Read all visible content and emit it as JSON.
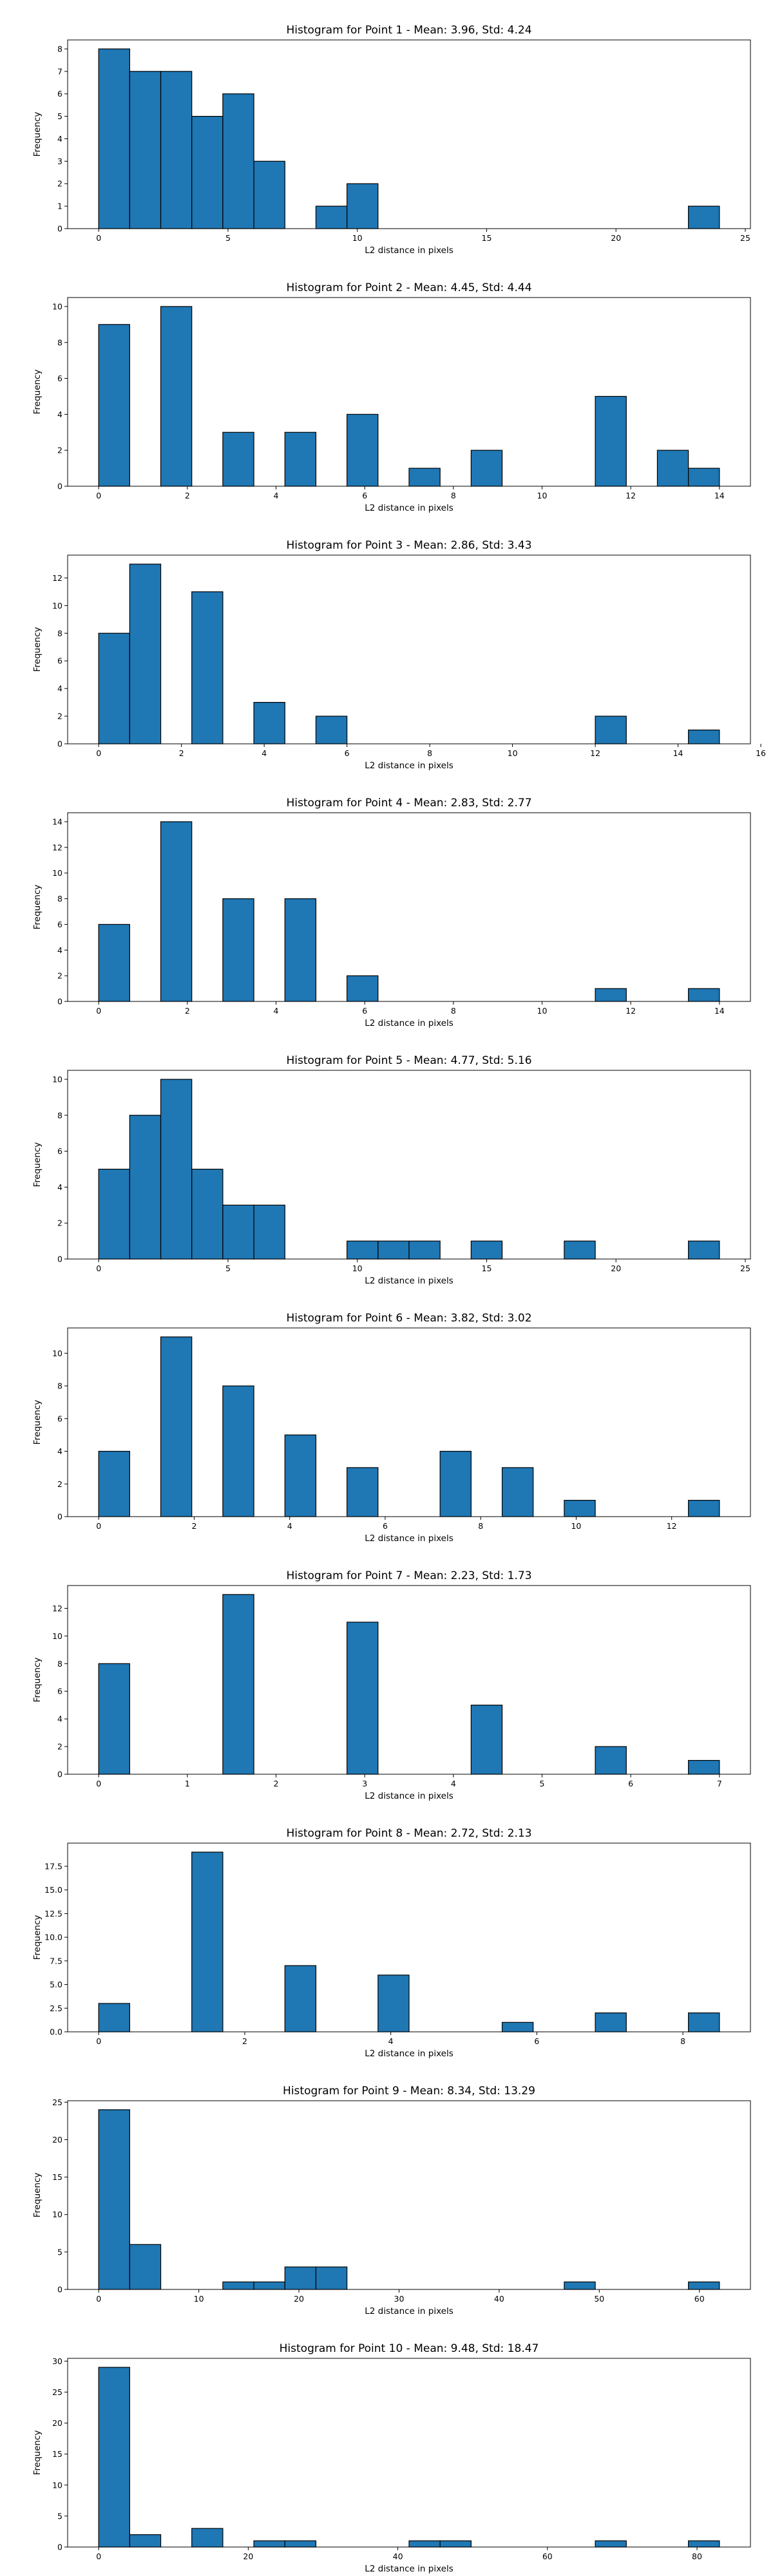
{
  "style": {
    "bar_color": "#1f77b4",
    "edge_color": "#000000"
  },
  "chart_data": [
    {
      "type": "bar",
      "title": "Histogram for Point 1 - Mean: 3.96, Std: 4.24",
      "xlabel": "L2 distance in pixels",
      "ylabel": "Frequency",
      "xlim": [
        -1.2,
        25.2
      ],
      "ylim": [
        0,
        8.4
      ],
      "xticks": [
        0,
        5,
        10,
        15,
        20,
        25
      ],
      "yticks": [
        0,
        1,
        2,
        3,
        4,
        5,
        6,
        7,
        8
      ],
      "bins": [
        {
          "x0": 0.0,
          "x1": 1.2,
          "count": 8
        },
        {
          "x0": 1.2,
          "x1": 2.4,
          "count": 7
        },
        {
          "x0": 2.4,
          "x1": 3.6,
          "count": 7
        },
        {
          "x0": 3.6,
          "x1": 4.8,
          "count": 5
        },
        {
          "x0": 4.8,
          "x1": 6.0,
          "count": 6
        },
        {
          "x0": 6.0,
          "x1": 7.2,
          "count": 3
        },
        {
          "x0": 8.4,
          "x1": 9.6,
          "count": 1
        },
        {
          "x0": 9.6,
          "x1": 10.8,
          "count": 2
        },
        {
          "x0": 22.8,
          "x1": 24.0,
          "count": 1
        }
      ]
    },
    {
      "type": "bar",
      "title": "Histogram for Point 2 - Mean: 4.45, Std: 4.44",
      "xlabel": "L2 distance in pixels",
      "ylabel": "Frequency",
      "xlim": [
        -0.7,
        14.7
      ],
      "ylim": [
        0,
        10.5
      ],
      "xticks": [
        0,
        2,
        4,
        6,
        8,
        10,
        12,
        14
      ],
      "yticks": [
        0,
        2,
        4,
        6,
        8,
        10
      ],
      "bins": [
        {
          "x0": 0.0,
          "x1": 0.7,
          "count": 9
        },
        {
          "x0": 1.4,
          "x1": 2.1,
          "count": 10
        },
        {
          "x0": 2.8,
          "x1": 3.5,
          "count": 3
        },
        {
          "x0": 4.2,
          "x1": 4.9,
          "count": 3
        },
        {
          "x0": 5.6,
          "x1": 6.3,
          "count": 4
        },
        {
          "x0": 7.0,
          "x1": 7.7,
          "count": 1
        },
        {
          "x0": 8.4,
          "x1": 9.1,
          "count": 2
        },
        {
          "x0": 11.2,
          "x1": 11.9,
          "count": 5
        },
        {
          "x0": 12.6,
          "x1": 13.3,
          "count": 2
        },
        {
          "x0": 13.3,
          "x1": 14.0,
          "count": 1
        }
      ]
    },
    {
      "type": "bar",
      "title": "Histogram for Point 3 - Mean: 2.86, Std: 3.43",
      "xlabel": "L2 distance in pixels",
      "ylabel": "Frequency",
      "xlim": [
        -0.75,
        15.75
      ],
      "ylim": [
        0,
        13.65
      ],
      "xticks": [
        0,
        2,
        4,
        6,
        8,
        10,
        12,
        14,
        16
      ],
      "yticks": [
        0,
        2,
        4,
        6,
        8,
        10,
        12
      ],
      "bins": [
        {
          "x0": 0.0,
          "x1": 0.75,
          "count": 8
        },
        {
          "x0": 0.75,
          "x1": 1.5,
          "count": 13
        },
        {
          "x0": 2.25,
          "x1": 3.0,
          "count": 11
        },
        {
          "x0": 3.75,
          "x1": 4.5,
          "count": 3
        },
        {
          "x0": 5.25,
          "x1": 6.0,
          "count": 2
        },
        {
          "x0": 12.0,
          "x1": 12.75,
          "count": 2
        },
        {
          "x0": 14.25,
          "x1": 15.0,
          "count": 1
        }
      ]
    },
    {
      "type": "bar",
      "title": "Histogram for Point 4 - Mean: 2.83, Std: 2.77",
      "xlabel": "L2 distance in pixels",
      "ylabel": "Frequency",
      "xlim": [
        -0.7,
        14.7
      ],
      "ylim": [
        0,
        14.7
      ],
      "xticks": [
        0,
        2,
        4,
        6,
        8,
        10,
        12,
        14
      ],
      "yticks": [
        0,
        2,
        4,
        6,
        8,
        10,
        12,
        14
      ],
      "bins": [
        {
          "x0": 0.0,
          "x1": 0.7,
          "count": 6
        },
        {
          "x0": 1.4,
          "x1": 2.1,
          "count": 14
        },
        {
          "x0": 2.8,
          "x1": 3.5,
          "count": 8
        },
        {
          "x0": 4.2,
          "x1": 4.9,
          "count": 8
        },
        {
          "x0": 5.6,
          "x1": 6.3,
          "count": 2
        },
        {
          "x0": 11.2,
          "x1": 11.9,
          "count": 1
        },
        {
          "x0": 13.3,
          "x1": 14.0,
          "count": 1
        }
      ]
    },
    {
      "type": "bar",
      "title": "Histogram for Point 5 - Mean: 4.77, Std: 5.16",
      "xlabel": "L2 distance in pixels",
      "ylabel": "Frequency",
      "xlim": [
        -1.2,
        25.2
      ],
      "ylim": [
        0,
        10.5
      ],
      "xticks": [
        0,
        5,
        10,
        15,
        20,
        25
      ],
      "yticks": [
        0,
        2,
        4,
        6,
        8,
        10
      ],
      "bins": [
        {
          "x0": 0.0,
          "x1": 1.2,
          "count": 5
        },
        {
          "x0": 1.2,
          "x1": 2.4,
          "count": 8
        },
        {
          "x0": 2.4,
          "x1": 3.6,
          "count": 10
        },
        {
          "x0": 3.6,
          "x1": 4.8,
          "count": 5
        },
        {
          "x0": 4.8,
          "x1": 6.0,
          "count": 3
        },
        {
          "x0": 6.0,
          "x1": 7.2,
          "count": 3
        },
        {
          "x0": 9.6,
          "x1": 10.8,
          "count": 1
        },
        {
          "x0": 10.8,
          "x1": 12.0,
          "count": 1
        },
        {
          "x0": 12.0,
          "x1": 13.2,
          "count": 1
        },
        {
          "x0": 14.4,
          "x1": 15.6,
          "count": 1
        },
        {
          "x0": 18.0,
          "x1": 19.2,
          "count": 1
        },
        {
          "x0": 22.8,
          "x1": 24.0,
          "count": 1
        }
      ]
    },
    {
      "type": "bar",
      "title": "Histogram for Point 6 - Mean: 3.82, Std: 3.02",
      "xlabel": "L2 distance in pixels",
      "ylabel": "Frequency",
      "xlim": [
        -0.65,
        13.65
      ],
      "ylim": [
        0,
        11.55
      ],
      "xticks": [
        0,
        2,
        4,
        6,
        8,
        10,
        12
      ],
      "yticks": [
        0,
        2,
        4,
        6,
        8,
        10
      ],
      "bins": [
        {
          "x0": 0.0,
          "x1": 0.65,
          "count": 4
        },
        {
          "x0": 1.3,
          "x1": 1.95,
          "count": 11
        },
        {
          "x0": 2.6,
          "x1": 3.25,
          "count": 8
        },
        {
          "x0": 3.9,
          "x1": 4.55,
          "count": 5
        },
        {
          "x0": 5.2,
          "x1": 5.85,
          "count": 3
        },
        {
          "x0": 7.15,
          "x1": 7.8,
          "count": 4
        },
        {
          "x0": 8.45,
          "x1": 9.1,
          "count": 3
        },
        {
          "x0": 9.75,
          "x1": 10.4,
          "count": 1
        },
        {
          "x0": 12.35,
          "x1": 13.0,
          "count": 1
        }
      ]
    },
    {
      "type": "bar",
      "title": "Histogram for Point 7 - Mean: 2.23, Std: 1.73",
      "xlabel": "L2 distance in pixels",
      "ylabel": "Frequency",
      "xlim": [
        -0.35,
        7.35
      ],
      "ylim": [
        0,
        13.65
      ],
      "xticks": [
        0,
        1,
        2,
        3,
        4,
        5,
        6,
        7
      ],
      "yticks": [
        0,
        2,
        4,
        6,
        8,
        10,
        12
      ],
      "bins": [
        {
          "x0": 0.0,
          "x1": 0.35,
          "count": 8
        },
        {
          "x0": 1.4,
          "x1": 1.75,
          "count": 13
        },
        {
          "x0": 2.8,
          "x1": 3.15,
          "count": 11
        },
        {
          "x0": 4.2,
          "x1": 4.55,
          "count": 5
        },
        {
          "x0": 5.6,
          "x1": 5.95,
          "count": 2
        },
        {
          "x0": 6.65,
          "x1": 7.0,
          "count": 1
        }
      ]
    },
    {
      "type": "bar",
      "title": "Histogram for Point 8 - Mean: 2.72, Std: 2.13",
      "xlabel": "L2 distance in pixels",
      "ylabel": "Frequency",
      "xlim": [
        -0.425,
        8.925
      ],
      "ylim": [
        0,
        19.95
      ],
      "xticks": [
        0,
        2,
        4,
        6,
        8
      ],
      "yticks": [
        0,
        2.5,
        5.0,
        7.5,
        10.0,
        12.5,
        15.0,
        17.5
      ],
      "ytick_labels": [
        "0.0",
        "2.5",
        "5.0",
        "7.5",
        "10.0",
        "12.5",
        "15.0",
        "17.5"
      ],
      "bins": [
        {
          "x0": 0.0,
          "x1": 0.425,
          "count": 3
        },
        {
          "x0": 1.275,
          "x1": 1.7,
          "count": 19
        },
        {
          "x0": 2.55,
          "x1": 2.975,
          "count": 7
        },
        {
          "x0": 3.825,
          "x1": 4.25,
          "count": 6
        },
        {
          "x0": 5.525,
          "x1": 5.95,
          "count": 1
        },
        {
          "x0": 6.8,
          "x1": 7.225,
          "count": 2
        },
        {
          "x0": 8.075,
          "x1": 8.5,
          "count": 2
        }
      ]
    },
    {
      "type": "bar",
      "title": "Histogram for Point 9 - Mean: 8.34, Std: 13.29",
      "xlabel": "L2 distance in pixels",
      "ylabel": "Frequency",
      "xlim": [
        -3.1,
        65.1
      ],
      "ylim": [
        0,
        25.2
      ],
      "xticks": [
        0,
        10,
        20,
        30,
        40,
        50,
        60
      ],
      "yticks": [
        0,
        5,
        10,
        15,
        20,
        25
      ],
      "bins": [
        {
          "x0": 0.0,
          "x1": 3.1,
          "count": 24
        },
        {
          "x0": 3.1,
          "x1": 6.2,
          "count": 6
        },
        {
          "x0": 12.4,
          "x1": 15.5,
          "count": 1
        },
        {
          "x0": 15.5,
          "x1": 18.6,
          "count": 1
        },
        {
          "x0": 18.6,
          "x1": 21.7,
          "count": 3
        },
        {
          "x0": 21.7,
          "x1": 24.8,
          "count": 3
        },
        {
          "x0": 46.5,
          "x1": 49.6,
          "count": 1
        },
        {
          "x0": 58.9,
          "x1": 62.0,
          "count": 1
        }
      ]
    },
    {
      "type": "bar",
      "title": "Histogram for Point 10 - Mean: 9.48, Std: 18.47",
      "xlabel": "L2 distance in pixels",
      "ylabel": "Frequency",
      "xlim": [
        -4.15,
        87.15
      ],
      "ylim": [
        0,
        30.45
      ],
      "xticks": [
        0,
        20,
        40,
        60,
        80
      ],
      "yticks": [
        0,
        5,
        10,
        15,
        20,
        25,
        30
      ],
      "bins": [
        {
          "x0": 0.0,
          "x1": 4.15,
          "count": 29
        },
        {
          "x0": 4.15,
          "x1": 8.3,
          "count": 2
        },
        {
          "x0": 12.45,
          "x1": 16.6,
          "count": 3
        },
        {
          "x0": 20.75,
          "x1": 24.9,
          "count": 1
        },
        {
          "x0": 24.9,
          "x1": 29.05,
          "count": 1
        },
        {
          "x0": 41.5,
          "x1": 45.65,
          "count": 1
        },
        {
          "x0": 45.65,
          "x1": 49.8,
          "count": 1
        },
        {
          "x0": 66.4,
          "x1": 70.55,
          "count": 1
        },
        {
          "x0": 78.85,
          "x1": 83.0,
          "count": 1
        }
      ]
    }
  ]
}
